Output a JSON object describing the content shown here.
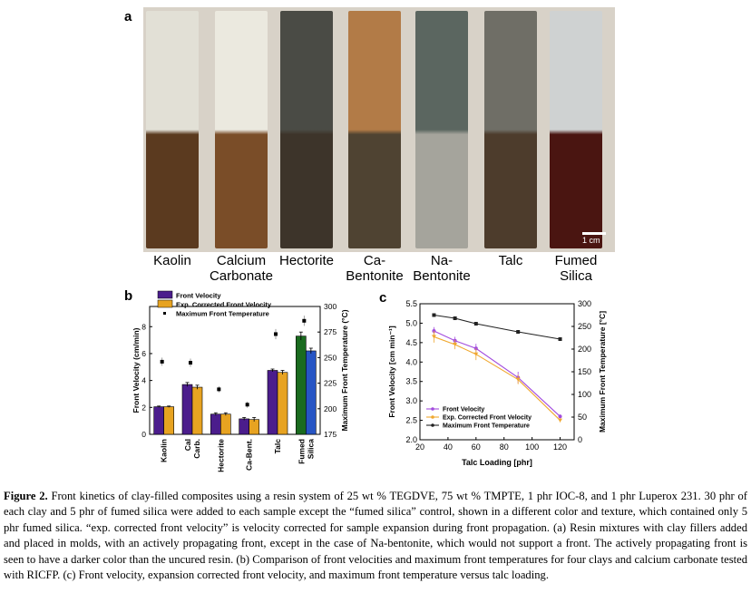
{
  "panel_a": {
    "letter": "a",
    "scale_bar": "1 cm",
    "samples": [
      "Kaolin",
      "Calcium\nCarbonate",
      "Hectorite",
      "Ca-\nBentonite",
      "Na-\nBentonite",
      "Talc",
      "Fumed\nSilica"
    ],
    "colors": {
      "tops": [
        "#e2e0d6",
        "#ebe9df",
        "#4a4b45",
        "#b27b47",
        "#5b6660",
        "#6f6e66",
        "#cfd2d2"
      ],
      "bottoms": [
        "#5b3a1f",
        "#7a4d28",
        "#3d342a",
        "#4f4332",
        "#a5a49c",
        "#4d3c2c",
        "#4a1511"
      ]
    }
  },
  "panel_b": {
    "letter": "b",
    "colors": {
      "front_velocity": "#4b1d8c",
      "exp_corrected": "#e7a321",
      "fumed_velocity": "#1a6b1f",
      "fumed_exp": "#2755c4"
    },
    "chart_data": {
      "type": "bar",
      "categories": [
        "Kaolin",
        "Cal Carb.",
        "Hectorite",
        "Ca-Bent.",
        "Talc",
        "Fumed Silica"
      ],
      "series": [
        {
          "name": "Front Velocity",
          "values": [
            2.05,
            3.7,
            1.5,
            1.15,
            4.75,
            7.3
          ],
          "errors": [
            0.05,
            0.15,
            0.1,
            0.1,
            0.1,
            0.3
          ]
        },
        {
          "name": "Exp. Corrected Front Velocity",
          "values": [
            2.05,
            3.5,
            1.5,
            1.1,
            4.6,
            6.2
          ],
          "errors": [
            0.05,
            0.15,
            0.1,
            0.15,
            0.15,
            0.2
          ]
        },
        {
          "name": "Maximum Front Temperature",
          "values": [
            246,
            245,
            219,
            204,
            273,
            286
          ],
          "errors": [
            4,
            4,
            3,
            3,
            5,
            5
          ]
        }
      ],
      "xlabel": "",
      "ylabel": "Front Velocity (cm/min)",
      "y2label": "Maximum Front Temperature (°C)",
      "ylim": [
        0,
        9.5
      ],
      "y2lim": [
        175,
        300
      ],
      "yticks": [
        "0",
        "2",
        "4",
        "6",
        "8"
      ],
      "y2ticks": [
        "175",
        "200",
        "225",
        "250",
        "275",
        "300"
      ],
      "tick_labels": [
        "Kaolin",
        "Cal\nCarb.",
        "Hectorite",
        "Ca-Bent.",
        "Talc",
        "Fumed\nSilica"
      ],
      "legend_placement": "top-left"
    }
  },
  "panel_c": {
    "letter": "c",
    "colors": {
      "front_velocity": "#a24bde",
      "exp_corrected": "#f0a830",
      "temperature": "#222222"
    },
    "chart_data": {
      "type": "line",
      "x": [
        30,
        45,
        60,
        90,
        120
      ],
      "series": [
        {
          "name": "Front Velocity",
          "values": [
            4.8,
            4.55,
            4.35,
            3.6,
            2.6
          ],
          "errors": [
            0.1,
            0.1,
            0.12,
            0.15,
            0.05
          ]
        },
        {
          "name": "Exp. Corrected Front Velocity",
          "values": [
            4.65,
            4.45,
            4.2,
            3.55,
            2.5
          ],
          "errors": [
            0.15,
            0.12,
            0.15,
            0.12,
            0.05
          ]
        },
        {
          "name": "Maximum Front Temperature",
          "values": [
            275,
            268,
            256,
            238,
            222
          ]
        }
      ],
      "xlabel": "Talc Loading [phr]",
      "ylabel": "Front Velocity [cm min⁻¹]",
      "y2label": "Maximum Front Temperature [°C]",
      "xlim": [
        20,
        130
      ],
      "ylim": [
        2.0,
        5.5
      ],
      "y2lim": [
        0,
        300
      ],
      "xticks": [
        "20",
        "40",
        "60",
        "80",
        "100",
        "120"
      ],
      "yticks": [
        "2.0",
        "2.5",
        "3.0",
        "3.5",
        "4.0",
        "4.5",
        "5.0",
        "5.5"
      ],
      "y2ticks": [
        "0",
        "50",
        "100",
        "150",
        "200",
        "250",
        "300"
      ],
      "legend_placement": "bottom-left"
    }
  },
  "caption": {
    "label": "Figure 2.",
    "text": " Front kinetics of clay-filled composites using a resin system of 25 wt % TEGDVE, 75 wt % TMPTE, 1 phr IOC-8, and 1 phr Luperox 231. 30 phr of each clay and 5 phr of fumed silica were added to each sample except the “fumed silica” control, shown in a different color and texture, which contained only 5 phr fumed silica. “exp. corrected front velocity” is velocity corrected for sample expansion during front propagation. (a) Resin mixtures with clay fillers added and placed in molds, with an actively propagating front, except in the case of Na-bentonite, which would not support a front. The actively propagating front is seen to have a darker color than the uncured resin. (b) Comparison of front velocities and maximum front temperatures for four clays and calcium carbonate tested with RICFP. (c) Front velocity, expansion corrected front velocity, and maximum front temperature versus talc loading."
  }
}
